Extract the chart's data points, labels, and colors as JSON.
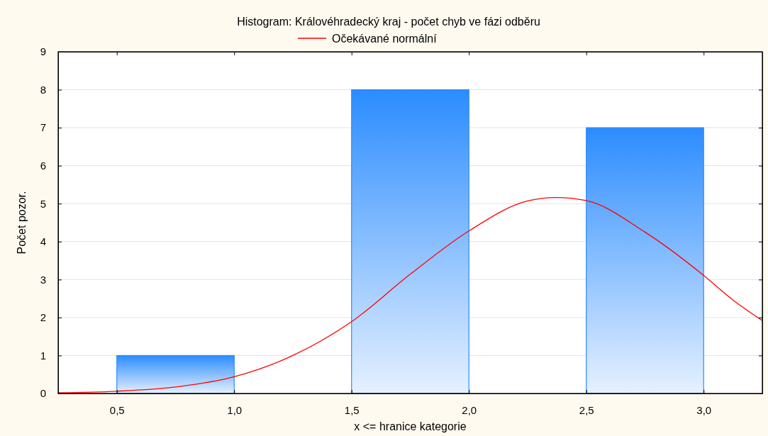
{
  "chart_data": {
    "type": "histogram",
    "title": "Histogram: Královéhradecký kraj - počet chyb ve fázi odběru",
    "xlabel": "x <= hranice kategorie",
    "ylabel": "Počet pozor.",
    "bins": [
      0.5,
      1.0,
      1.5,
      2.0,
      2.5,
      3.0
    ],
    "values": [
      1,
      0,
      8,
      0,
      7
    ],
    "color": "#2b8cff",
    "series": [
      {
        "type": "line",
        "name": "Očekávané normální",
        "color": "#ff0000",
        "x": [
          0.25,
          0.5,
          0.75,
          1.0,
          1.25,
          1.5,
          1.75,
          2.0,
          2.25,
          2.37,
          2.5,
          2.75,
          3.0,
          3.125,
          3.25
        ],
        "values": [
          0.02,
          0.06,
          0.17,
          0.44,
          1.0,
          1.89,
          3.14,
          4.28,
          5.07,
          5.16,
          5.08,
          4.25,
          3.11,
          2.46,
          1.92
        ]
      }
    ],
    "xlim": [
      0.25,
      3.25
    ],
    "xticks": [
      {
        "value": 0.5,
        "label": "0,5"
      },
      {
        "value": 1.0,
        "label": "1,0"
      },
      {
        "value": 1.5,
        "label": "1,5"
      },
      {
        "value": 2.0,
        "label": "2,0"
      },
      {
        "value": 2.5,
        "label": "2,5"
      },
      {
        "value": 3.0,
        "label": "3,0"
      }
    ],
    "ylim": [
      0,
      9
    ],
    "yticks": [
      0,
      1,
      2,
      3,
      4,
      5,
      6,
      7,
      8,
      9
    ],
    "grid": "y",
    "legend": "top",
    "marker": "none",
    "line_style": "solid"
  }
}
